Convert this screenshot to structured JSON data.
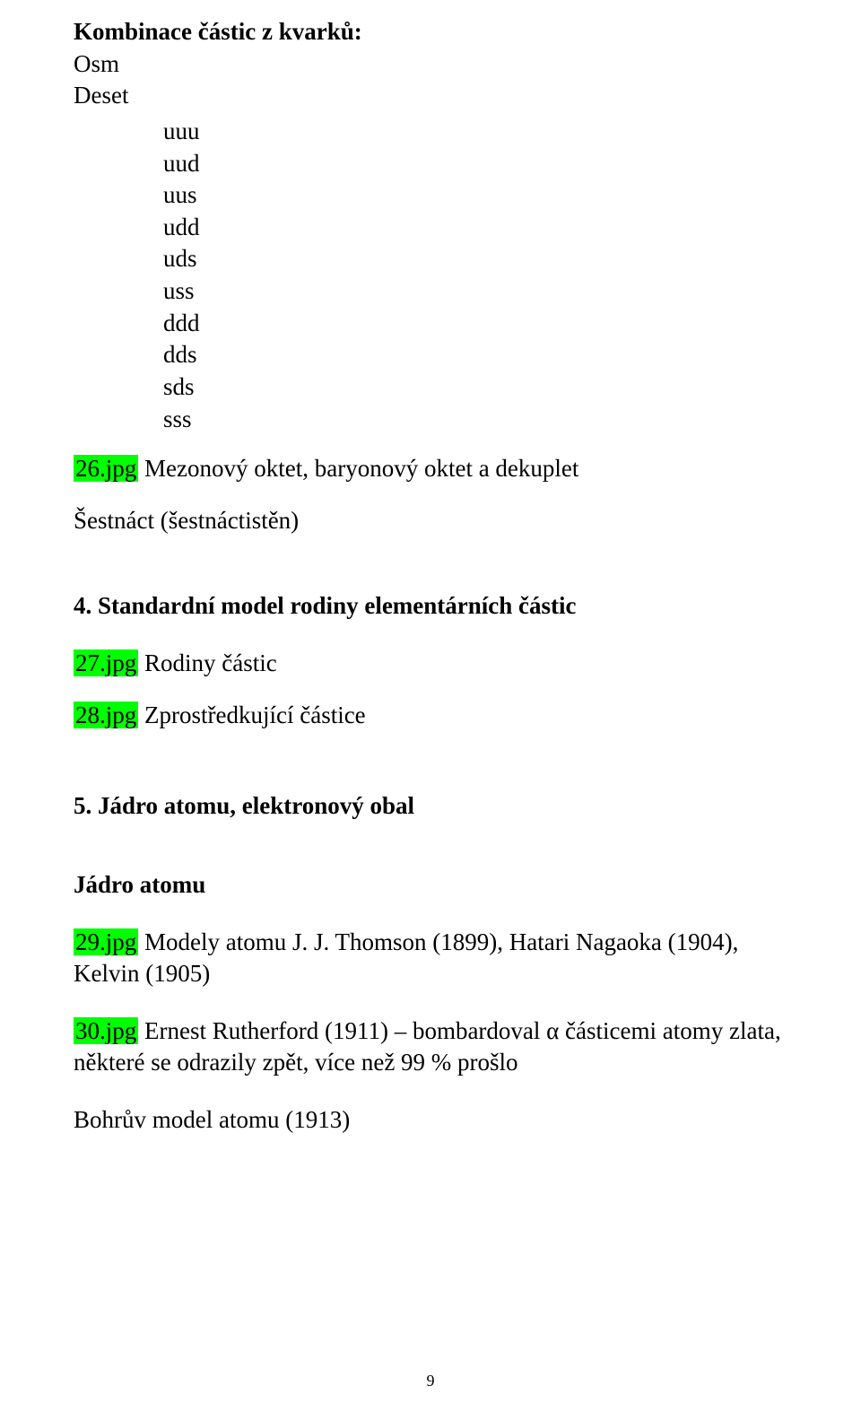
{
  "title": "Kombinace částic z kvarků:",
  "osm": "Osm",
  "deset": "Deset",
  "quark_list": {
    "i0": "uuu",
    "i1": "uud",
    "i2": "uus",
    "i3": "udd",
    "i4": "uds",
    "i5": "uss",
    "i6": "ddd",
    "i7": "dds",
    "i8": "sds",
    "i9": "sss"
  },
  "jpg26_label": "26.jpg",
  "jpg26_text": "  Mezonový oktet, baryonový oktet a dekuplet",
  "sestnact": "Šestnáct (šestnáctistěn)",
  "section4": "4. Standardní model rodiny elementárních částic",
  "jpg27_label": "27.jpg",
  "jpg27_text": "  Rodiny částic",
  "jpg28_label": "28.jpg",
  "jpg28_text": "  Zprostředkující částice",
  "section5": "5. Jádro atomu, elektronový obal",
  "jadro": "Jádro atomu",
  "jpg29_label": "29.jpg",
  "jpg29_text": "  Modely atomu J. J. Thomson (1899), Hatari Nagaoka (1904), Kelvin (1905)",
  "jpg30_label": "30.jpg",
  "jpg30_text": "  Ernest Rutherford (1911) – bombardoval α částicemi atomy zlata, některé se odrazily zpět, více než 99 % prošlo",
  "bohr": "Bohrův model atomu  (1913)",
  "pagenum": "9",
  "highlight_color": "#00ff00",
  "bg_color": "#ffffff",
  "text_color": "#000000"
}
